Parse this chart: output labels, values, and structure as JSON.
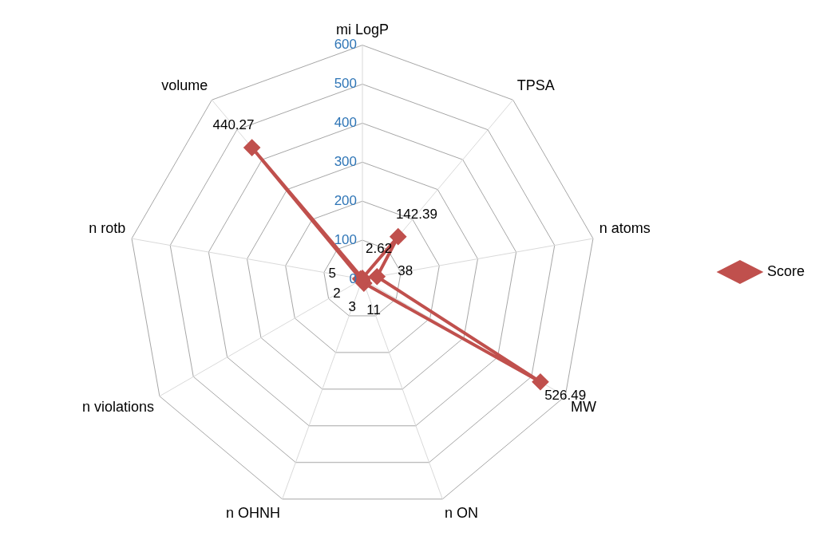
{
  "chart_data": {
    "type": "radar",
    "categories": [
      "mi LogP",
      "TPSA",
      "n atoms",
      "MW",
      "n ON",
      "n OHNH",
      "n violations",
      "n rotb",
      "volume"
    ],
    "series": [
      {
        "name": "Score",
        "color": "#c0504d",
        "values": [
          2.62,
          142.39,
          38,
          526.49,
          11,
          3,
          2,
          5,
          440.27
        ]
      }
    ],
    "ylim": [
      0,
      600
    ],
    "yticks": [
      0,
      100,
      200,
      300,
      400,
      500,
      600
    ],
    "grid": true,
    "legend": "right",
    "marker": "diamond",
    "line_style": "solid",
    "data_labels": true
  }
}
